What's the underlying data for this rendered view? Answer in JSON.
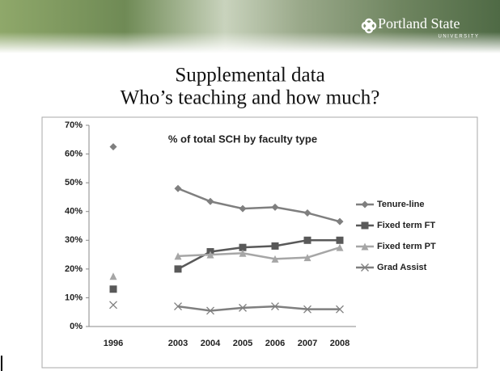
{
  "header": {
    "logo": "Portland State",
    "logo_sub": "UNIVERSITY"
  },
  "slide_title": [
    "Supplemental data",
    "Who’s teaching and how much?"
  ],
  "chart_data": {
    "type": "line",
    "title": "% of total SCH by faculty type",
    "categories": [
      "1996",
      null,
      "2003",
      "2004",
      "2005",
      "2006",
      "2007",
      "2008"
    ],
    "series": [
      {
        "name": "Tenure-line",
        "color": "#7f7f7f",
        "marker": "diamond",
        "values": [
          62.5,
          null,
          48,
          43.5,
          41,
          41.5,
          39.5,
          36.5
        ]
      },
      {
        "name": "Fixed term FT",
        "color": "#595959",
        "marker": "square",
        "values": [
          13,
          null,
          20,
          26,
          27.5,
          28,
          30,
          30
        ]
      },
      {
        "name": "Fixed term PT",
        "color": "#a6a6a6",
        "marker": "triangle",
        "values": [
          17.5,
          null,
          24.5,
          25,
          25.5,
          23.5,
          24,
          27.5
        ]
      },
      {
        "name": "Grad Assist",
        "color": "#7f7f7f",
        "marker": "x",
        "values": [
          7.5,
          null,
          7,
          5.5,
          6.5,
          7,
          6,
          6
        ]
      }
    ],
    "ylim": [
      0,
      70
    ],
    "yticks": [
      {
        "value": 0,
        "label": "0%"
      },
      {
        "value": 10,
        "label": "10%"
      },
      {
        "value": 20,
        "label": "20%"
      },
      {
        "value": 30,
        "label": "30%"
      },
      {
        "value": 40,
        "label": "40%"
      },
      {
        "value": 50,
        "label": "50%"
      },
      {
        "value": 60,
        "label": "60%"
      },
      {
        "value": 70,
        "label": "70%"
      }
    ],
    "legend": "right"
  }
}
